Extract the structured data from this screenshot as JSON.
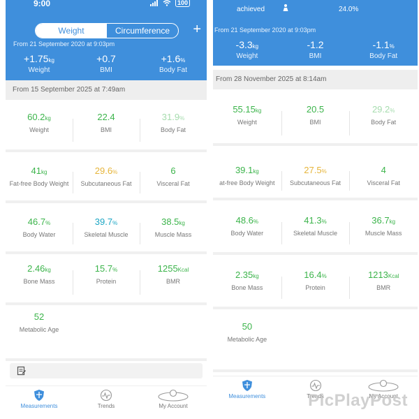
{
  "left": {
    "status": {
      "time": "9:00",
      "battery": "100"
    },
    "segmented": {
      "weight": "Weight",
      "circumference": "Circumference"
    },
    "add_label": "+",
    "since_text": "From 21 September 2020 at 9:03pm",
    "changes": [
      {
        "value": "+1.75",
        "unit": "kg",
        "label": "Weight"
      },
      {
        "value": "+0.7",
        "unit": "",
        "label": "BMI"
      },
      {
        "value": "+1.6",
        "unit": "%",
        "label": "Body Fat"
      }
    ],
    "date_header": "From 15 September 2025 at 7:49am",
    "metrics": [
      [
        {
          "value": "60.2",
          "unit": "kg",
          "label": "Weight",
          "color": "green"
        },
        {
          "value": "22.4",
          "unit": "",
          "label": "BMI",
          "color": "green"
        },
        {
          "value": "31.9",
          "unit": "%",
          "label": "Body Fat",
          "color": "lgreen"
        }
      ],
      [
        {
          "value": "41",
          "unit": "kg",
          "label": "Fat-free Body Weight",
          "color": "green"
        },
        {
          "value": "29.6",
          "unit": "%",
          "label": "Subcutaneous Fat",
          "color": "amber"
        },
        {
          "value": "6",
          "unit": "",
          "label": "Visceral Fat",
          "color": "green"
        }
      ],
      [
        {
          "value": "46.7",
          "unit": "%",
          "label": "Body Water",
          "color": "green"
        },
        {
          "value": "39.7",
          "unit": "%",
          "label": "Skeletal Muscle",
          "color": "teal"
        },
        {
          "value": "38.5",
          "unit": "kg",
          "label": "Muscle Mass",
          "color": "green"
        }
      ],
      [
        {
          "value": "2.46",
          "unit": "kg",
          "label": "Bone Mass",
          "color": "green"
        },
        {
          "value": "15.7",
          "unit": "%",
          "label": "Protein",
          "color": "green"
        },
        {
          "value": "1255",
          "unit": "Kcal",
          "label": "BMR",
          "color": "green"
        }
      ],
      [
        {
          "value": "52",
          "unit": "",
          "label": "Metabolic Age",
          "color": "green"
        }
      ]
    ],
    "tabs": [
      {
        "label": "Measurements",
        "icon": "shield-icon"
      },
      {
        "label": "Trends",
        "icon": "pulse-icon"
      },
      {
        "label": "My Account",
        "icon": "account-icon"
      }
    ]
  },
  "right": {
    "achieved_text": "achieved",
    "achieved_pct": "24.0%",
    "since_text": "From 21 September 2020 at 9:03pm",
    "changes": [
      {
        "value": "-3.3",
        "unit": "kg",
        "label": "Weight"
      },
      {
        "value": "-1.2",
        "unit": "",
        "label": "BMI"
      },
      {
        "value": "-1.1",
        "unit": "%",
        "label": "Body Fat"
      }
    ],
    "date_header": "From 28 November 2025 at 8:14am",
    "metrics": [
      [
        {
          "value": "55.15",
          "unit": "kg",
          "label": "Weight",
          "color": "green"
        },
        {
          "value": "20.5",
          "unit": "",
          "label": "BMI",
          "color": "green"
        },
        {
          "value": "29.2",
          "unit": "%",
          "label": "Body Fat",
          "color": "lgreen"
        }
      ],
      [
        {
          "value": "39.1",
          "unit": "kg",
          "label": "at-free Body Weight",
          "color": "green"
        },
        {
          "value": "27.5",
          "unit": "%",
          "label": "Subcutaneous Fat",
          "color": "amber"
        },
        {
          "value": "4",
          "unit": "",
          "label": "Visceral Fat",
          "color": "green"
        }
      ],
      [
        {
          "value": "48.6",
          "unit": "%",
          "label": "Body Water",
          "color": "green"
        },
        {
          "value": "41.3",
          "unit": "%",
          "label": "Skeletal Muscle",
          "color": "green"
        },
        {
          "value": "36.7",
          "unit": "kg",
          "label": "Muscle Mass",
          "color": "green"
        }
      ],
      [
        {
          "value": "2.35",
          "unit": "kg",
          "label": "Bone Mass",
          "color": "green"
        },
        {
          "value": "16.4",
          "unit": "%",
          "label": "Protein",
          "color": "green"
        },
        {
          "value": "1213",
          "unit": "Kcal",
          "label": "BMR",
          "color": "green"
        }
      ],
      [
        {
          "value": "50",
          "unit": "",
          "label": "Metabolic Age",
          "color": "green"
        }
      ]
    ],
    "tabs": [
      {
        "label": "Measurements",
        "icon": "shield-icon"
      },
      {
        "label": "Trends",
        "icon": "pulse-icon"
      },
      {
        "label": "My Account",
        "icon": "account-icon"
      }
    ]
  },
  "watermark": "PicPlayPost"
}
